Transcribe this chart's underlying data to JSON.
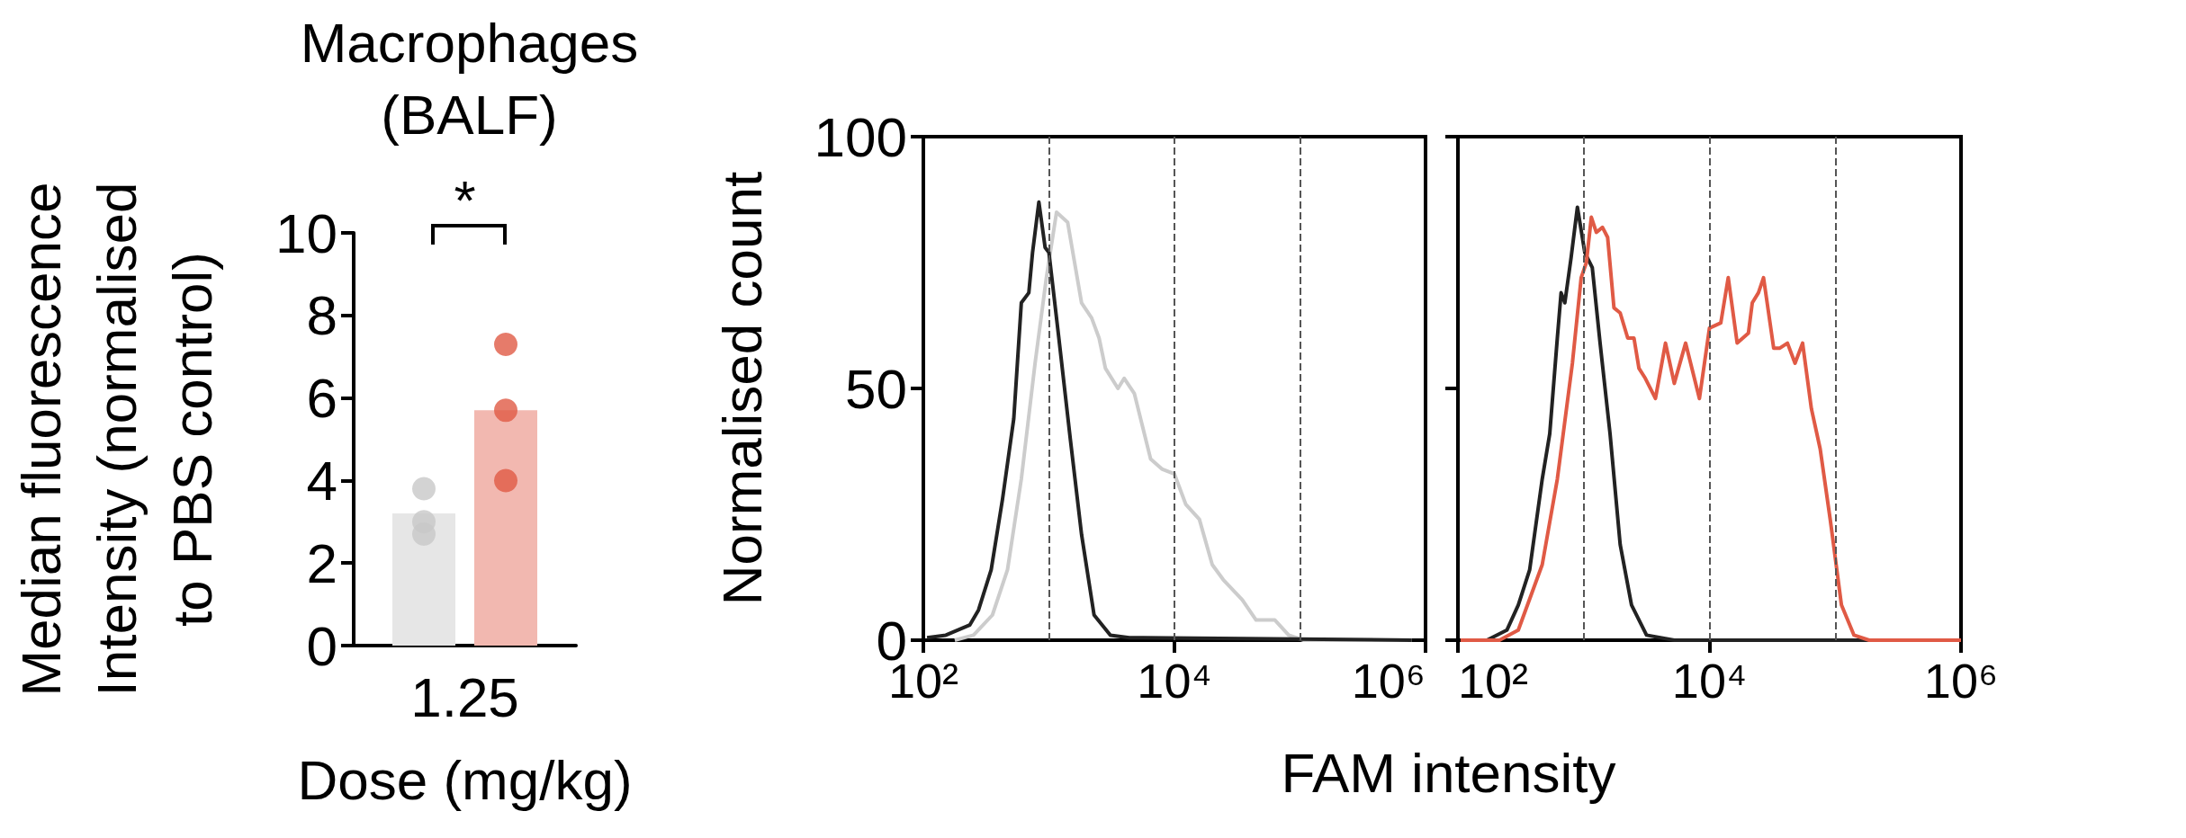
{
  "chart_data": [
    {
      "type": "bar",
      "title": "Macrophages\n(BALF)",
      "xlabel": "Dose (mg/kg)",
      "ylabel": "Median fluorescence\nIntensity (normalised\nto PBS control)",
      "categories": [
        "1.25"
      ],
      "ylim": [
        0,
        10
      ],
      "yticks": [
        0,
        2,
        4,
        6,
        8,
        10
      ],
      "marker": "circle",
      "annotations": [
        "*"
      ],
      "series": [
        {
          "color": "#e6e6e6",
          "values": [
            3.2
          ]
        },
        {
          "color": "#f2b8b0",
          "values": [
            5.7
          ]
        },
        {
          "type": "scatter",
          "color": "#c8c8c8",
          "x": [
            "1.25",
            "1.25",
            "1.25"
          ],
          "values": [
            3.8,
            3.0,
            2.7
          ]
        },
        {
          "type": "scatter",
          "color": "#e05a45",
          "x": [
            "1.25",
            "1.25",
            "1.25"
          ],
          "values": [
            7.3,
            5.7,
            4.0
          ]
        }
      ]
    },
    {
      "type": "line",
      "ylabel": "Normalised count",
      "log": "x",
      "xlim": [
        100,
        1000000
      ],
      "xticks": [
        {
          "value": 100,
          "label": "10²"
        },
        {
          "value": 10000,
          "label": "10⁴"
        },
        {
          "value": 1000000,
          "label": "10⁶"
        }
      ],
      "ylim": [
        0,
        100
      ],
      "yticks": [
        0,
        50,
        100
      ],
      "ref_lines": [
        {
          "axis": "x",
          "value": 1000,
          "color": "#555555",
          "line_style": "dashed"
        },
        {
          "axis": "x",
          "value": 10000,
          "color": "#555555",
          "line_style": "dashed"
        },
        {
          "axis": "x",
          "value": 100000,
          "color": "#555555",
          "line_style": "dashed"
        }
      ],
      "series": [
        {
          "color": "#cccccc",
          "x": [
            178,
            251,
            355,
            468,
            603,
            776,
            955,
            1150,
            1410,
            1820,
            2190,
            2510,
            2820,
            3550,
            3980,
            4790,
            6460,
            7940,
            10000,
            12300,
            15800,
            20000,
            24500,
            34700,
            44700,
            63100,
            81300,
            107000,
            776000
          ],
          "values": [
            0,
            1,
            5,
            14,
            32,
            55,
            72,
            85,
            83,
            67,
            64,
            60,
            54,
            50,
            52,
            49,
            36,
            34,
            33,
            27,
            24,
            15,
            12,
            8,
            4,
            4,
            1,
            0,
            0
          ]
        },
        {
          "color": "#222222",
          "x": [
            107,
            151,
            234,
            275,
            347,
            427,
            525,
            603,
            692,
            741,
            832,
            933,
            1000,
            1200,
            1480,
            1820,
            2290,
            3090,
            4370,
            776000
          ],
          "values": [
            0.5,
            1,
            3,
            6,
            14,
            28,
            44,
            67,
            69,
            77,
            87,
            78,
            77,
            60,
            40,
            21,
            5,
            1,
            0.5,
            0
          ]
        }
      ]
    },
    {
      "type": "line",
      "xlabel": "FAM intensity",
      "log": "x",
      "tick_labels": "x",
      "yticks": [
        0,
        50,
        100
      ],
      "xlim": [
        100,
        1000000
      ],
      "xticks": [
        {
          "value": 100,
          "label": "10²"
        },
        {
          "value": 10000,
          "label": "10⁴"
        },
        {
          "value": 1000000,
          "label": "10⁶"
        }
      ],
      "ylim": [
        0,
        100
      ],
      "ref_lines": [
        {
          "axis": "x",
          "value": 1000,
          "color": "#555555",
          "line_style": "dashed"
        },
        {
          "axis": "x",
          "value": 10000,
          "color": "#555555",
          "line_style": "dashed"
        },
        {
          "axis": "x",
          "value": 100000,
          "color": "#555555",
          "line_style": "dashed"
        }
      ],
      "series": [
        {
          "color": "#222222",
          "x": [
            170,
            245,
            302,
            372,
            468,
            537,
            617,
            661,
            708,
            794,
            891,
            1020,
            1170,
            1350,
            1620,
            1950,
            2400,
            3160,
            5250,
            1000000
          ],
          "values": [
            0,
            2,
            7,
            14,
            32,
            41,
            60,
            69,
            67,
            76,
            86,
            77,
            74,
            59,
            41,
            19,
            7,
            1,
            0,
            0
          ]
        },
        {
          "color": "#e05a45",
          "x": [
            105,
            214,
            302,
            468,
            617,
            813,
            955,
            1050,
            1150,
            1260,
            1410,
            1550,
            1740,
            1950,
            2240,
            2510,
            2750,
            3090,
            3720,
            4470,
            5250,
            6460,
            8320,
            10000,
            12300,
            14100,
            16600,
            20400,
            21900,
            24500,
            26900,
            32400,
            36300,
            41700,
            47900,
            55000,
            64600,
            75900,
            91200,
            112000,
            141000,
            186000,
            1000000
          ],
          "values": [
            0,
            0,
            2,
            15,
            32,
            55,
            72,
            75,
            84,
            81,
            82,
            80,
            66,
            65,
            60,
            60,
            54,
            52,
            48,
            59,
            51,
            59,
            48,
            62,
            63,
            72,
            59,
            61,
            67,
            69,
            72,
            58,
            58,
            59,
            55,
            59,
            46,
            38,
            24,
            7,
            1,
            0,
            0
          ]
        }
      ]
    }
  ]
}
